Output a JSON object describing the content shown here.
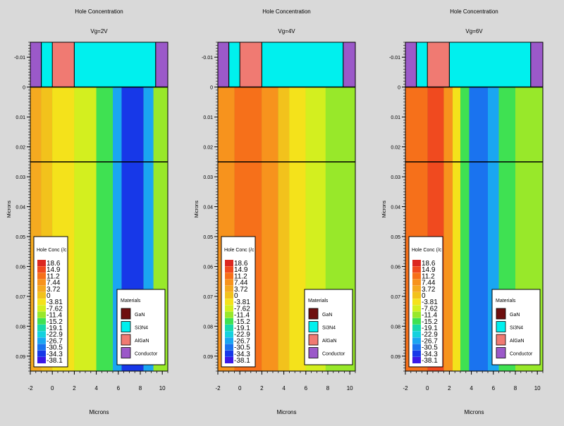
{
  "palette": {
    "background": "#d9d9d9",
    "scale_colors": [
      "#dc2820",
      "#f04a1f",
      "#f6701a",
      "#f7931d",
      "#f5aa20",
      "#f2c21c",
      "#f4e21b",
      "#d3ef1f",
      "#98e82a",
      "#3fe152",
      "#18d8aa",
      "#15d1de",
      "#1aa6f1",
      "#1a73ef",
      "#1738e8",
      "#3a18e6",
      "#7b16e8",
      "#b21ae4",
      "#e23ef0"
    ],
    "material_colors": [
      "#6e0f0f",
      "#00f0ee",
      "#f07a72",
      "#9b59c9"
    ]
  },
  "legend": {
    "title": "Hole Conc (/c",
    "labels": [
      "18.6",
      "14.9",
      "11.2",
      "7.44",
      "3.72",
      "0",
      "-3.81",
      "-7.62",
      "-11.4",
      "-15.2",
      "-19.1",
      "-22.9",
      "-26.7",
      "-30.5",
      "-34.3",
      "-38.1"
    ]
  },
  "materials": {
    "title": "Materials",
    "items": [
      {
        "name": "GaN",
        "color": "#6e0f0f"
      },
      {
        "name": "Si3N4",
        "color": "#00f0ee"
      },
      {
        "name": "AlGaN",
        "color": "#f07a72"
      },
      {
        "name": "Conductor",
        "color": "#9b59c9"
      }
    ]
  },
  "chart_data": [
    {
      "type": "heatmap",
      "title": "Hole Concentration",
      "subtitle": "Vg=2V",
      "xlabel": "Microns",
      "ylabel": "Microns",
      "xlim": [
        -2,
        10.5
      ],
      "ylim": [
        -0.015,
        0.095
      ],
      "y_inverted": true,
      "xticks": [
        "-2",
        "0",
        "2",
        "4",
        "6",
        "8",
        "10"
      ],
      "yticks": [
        "-0.01",
        "0",
        "0.01",
        "0.02",
        "0.03",
        "0.04",
        "0.05",
        "0.06",
        "0.07",
        "0.08",
        "0.09"
      ],
      "color_bands": [
        {
          "x0": -2,
          "x1": -1,
          "level": "3.72"
        },
        {
          "x0": -1,
          "x1": 0,
          "level": "0"
        },
        {
          "x0": 0,
          "x1": 2,
          "level": "-3.81"
        },
        {
          "x0": 2,
          "x1": 4,
          "level": "-7.62"
        },
        {
          "x0": 4,
          "x1": 5.5,
          "level": "-15.2"
        },
        {
          "x0": 5.5,
          "x1": 6.3,
          "level": "-26.7"
        },
        {
          "x0": 6.3,
          "x1": 8.3,
          "level": "-34.3"
        },
        {
          "x0": 8.3,
          "x1": 9.2,
          "level": "-26.7"
        },
        {
          "x0": 9.2,
          "x1": 10.5,
          "level": "-11.4"
        }
      ],
      "structures": [
        {
          "x0": -2,
          "x1": -1,
          "material": "Conductor"
        },
        {
          "x0": 0,
          "x1": 2,
          "material": "AlGaN"
        },
        {
          "x0": 2,
          "x1": 9.4,
          "material": "Si3N4"
        },
        {
          "x0": 9.4,
          "x1": 10.5,
          "material": "Conductor"
        }
      ]
    },
    {
      "type": "heatmap",
      "title": "Hole Concentration",
      "subtitle": "Vg=4V",
      "xlabel": "Microns",
      "ylabel": "Microns",
      "xlim": [
        -2,
        10.5
      ],
      "ylim": [
        -0.015,
        0.095
      ],
      "y_inverted": true,
      "xticks": [
        "-2",
        "0",
        "2",
        "4",
        "6",
        "8",
        "10"
      ],
      "yticks": [
        "-0.01",
        "0",
        "0.01",
        "0.02",
        "0.03",
        "0.04",
        "0.05",
        "0.06",
        "0.07",
        "0.08",
        "0.09"
      ],
      "color_bands": [
        {
          "x0": -2,
          "x1": -0.5,
          "level": "7.44"
        },
        {
          "x0": -0.5,
          "x1": 2,
          "level": "11.2"
        },
        {
          "x0": 2,
          "x1": 3.5,
          "level": "7.44"
        },
        {
          "x0": 3.5,
          "x1": 4.5,
          "level": "0"
        },
        {
          "x0": 4.5,
          "x1": 6,
          "level": "-3.81"
        },
        {
          "x0": 6,
          "x1": 7.8,
          "level": "-7.62"
        },
        {
          "x0": 7.8,
          "x1": 10.5,
          "level": "-11.4"
        }
      ],
      "structures": [
        {
          "x0": -2,
          "x1": -1,
          "material": "Conductor"
        },
        {
          "x0": 0,
          "x1": 2,
          "material": "AlGaN"
        },
        {
          "x0": 2,
          "x1": 9.4,
          "material": "Si3N4"
        },
        {
          "x0": 9.4,
          "x1": 10.5,
          "material": "Conductor"
        }
      ]
    },
    {
      "type": "heatmap",
      "title": "Hole Concentration",
      "subtitle": "Vg=6V",
      "xlabel": "Microns",
      "ylabel": "Microns",
      "xlim": [
        -2,
        10.5
      ],
      "ylim": [
        -0.015,
        0.095
      ],
      "y_inverted": true,
      "xticks": [
        "-2",
        "0",
        "2",
        "4",
        "6",
        "8",
        "10"
      ],
      "yticks": [
        "-0.01",
        "0",
        "0.01",
        "0.02",
        "0.03",
        "0.04",
        "0.05",
        "0.06",
        "0.07",
        "0.08",
        "0.09"
      ],
      "color_bands": [
        {
          "x0": -2,
          "x1": 0,
          "level": "11.2"
        },
        {
          "x0": 0,
          "x1": 1.5,
          "level": "14.9"
        },
        {
          "x0": 1.5,
          "x1": 2.3,
          "level": "7.44"
        },
        {
          "x0": 2.3,
          "x1": 3,
          "level": "-3.81"
        },
        {
          "x0": 3,
          "x1": 3.8,
          "level": "-15.2"
        },
        {
          "x0": 3.8,
          "x1": 5.5,
          "level": "-30.5"
        },
        {
          "x0": 5.5,
          "x1": 6.5,
          "level": "-26.7"
        },
        {
          "x0": 6.5,
          "x1": 8,
          "level": "-15.2"
        },
        {
          "x0": 8,
          "x1": 10.5,
          "level": "-11.4"
        }
      ],
      "structures": [
        {
          "x0": -2,
          "x1": -1,
          "material": "Conductor"
        },
        {
          "x0": 0,
          "x1": 2,
          "material": "AlGaN"
        },
        {
          "x0": 2,
          "x1": 9.4,
          "material": "Si3N4"
        },
        {
          "x0": 9.4,
          "x1": 10.5,
          "material": "Conductor"
        }
      ]
    }
  ]
}
